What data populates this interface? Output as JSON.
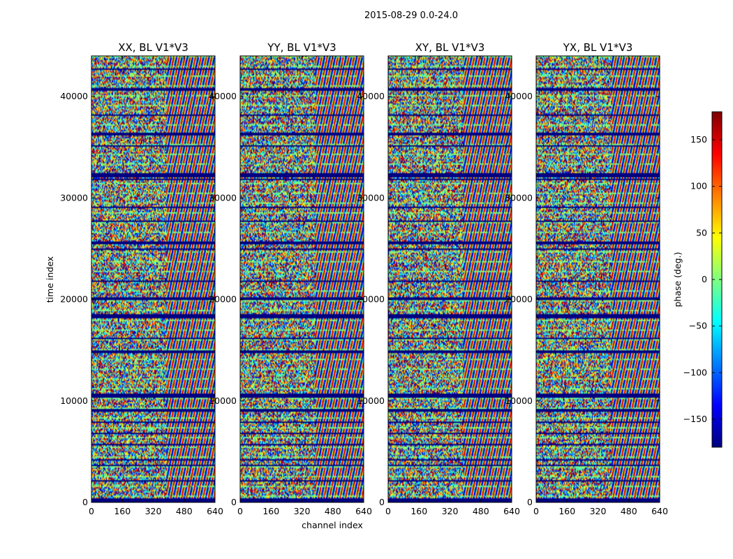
{
  "chart_data": {
    "type": "heatmap",
    "suptitle": "2015-08-29 0.0-24.0",
    "panels": [
      {
        "title": "XX, BL V1*V3"
      },
      {
        "title": "YY, BL V1*V3"
      },
      {
        "title": "XY, BL V1*V3"
      },
      {
        "title": "YX, BL V1*V3"
      }
    ],
    "xlabel": "channel index",
    "ylabel": "time index",
    "xlim": [
      0,
      640
    ],
    "ylim": [
      0,
      44000
    ],
    "xticks": [
      0,
      160,
      320,
      480,
      640
    ],
    "yticks": [
      0,
      10000,
      20000,
      30000,
      40000
    ],
    "colorbar": {
      "label": "phase (deg.)",
      "colormap": "jet",
      "range": [
        -180,
        180
      ],
      "ticks": [
        -150,
        -100,
        -50,
        0,
        50,
        100,
        150
      ],
      "tick_labels": [
        "−150",
        "−100",
        "−50",
        "0",
        "50",
        "100",
        "150"
      ],
      "colors": [
        "#00007f",
        "#0000ff",
        "#007fff",
        "#00ffff",
        "#7fff7f",
        "#ffff00",
        "#ff7f00",
        "#ff0000",
        "#7f0000"
      ]
    },
    "flagged_time_ranges": [
      [
        0,
        450
      ],
      [
        2100,
        2250
      ],
      [
        3600,
        3750
      ],
      [
        4150,
        4300
      ],
      [
        5600,
        5800
      ],
      [
        6700,
        6850
      ],
      [
        7800,
        8000
      ],
      [
        9000,
        9150
      ],
      [
        10300,
        10700
      ],
      [
        14700,
        15000
      ],
      [
        16100,
        16250
      ],
      [
        18200,
        18500
      ],
      [
        20000,
        20250
      ],
      [
        21700,
        21850
      ],
      [
        24900,
        25050
      ],
      [
        25400,
        25700
      ],
      [
        27600,
        27750
      ],
      [
        29000,
        29150
      ],
      [
        31700,
        31850
      ],
      [
        32100,
        32400
      ],
      [
        35000,
        35150
      ],
      [
        36200,
        36400
      ],
      [
        38100,
        38250
      ],
      [
        40600,
        40850
      ],
      [
        42600,
        42750
      ]
    ]
  }
}
